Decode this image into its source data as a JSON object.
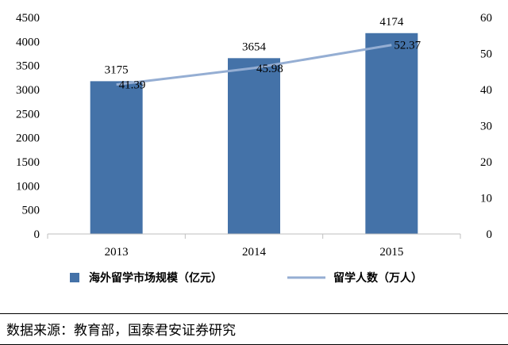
{
  "chart_data": {
    "type": "bar",
    "categories": [
      "2013",
      "2014",
      "2015"
    ],
    "series": [
      {
        "name": "海外留学市场规模（亿元）",
        "type": "bar",
        "axis": "left",
        "values": [
          3175,
          3654,
          4174
        ],
        "data_labels": [
          "3175",
          "3654",
          "4174"
        ],
        "color": "#4472A8"
      },
      {
        "name": "留学人数（万人）",
        "type": "line",
        "axis": "right",
        "values": [
          41.39,
          45.98,
          52.37
        ],
        "data_labels": [
          "41.39",
          "45.98",
          "52.37"
        ],
        "color": "#95AED3"
      }
    ],
    "y_left": {
      "range": [
        0,
        4500
      ],
      "ticks": [
        "0",
        "500",
        "1000",
        "1500",
        "2000",
        "2500",
        "3000",
        "3500",
        "4000",
        "4500"
      ]
    },
    "y_right": {
      "range": [
        0,
        60
      ],
      "ticks": [
        "0",
        "10",
        "20",
        "30",
        "40",
        "50",
        "60"
      ]
    },
    "grid": false,
    "legend_position": "bottom"
  },
  "source": "数据来源：教育部，国泰君安证券研究"
}
